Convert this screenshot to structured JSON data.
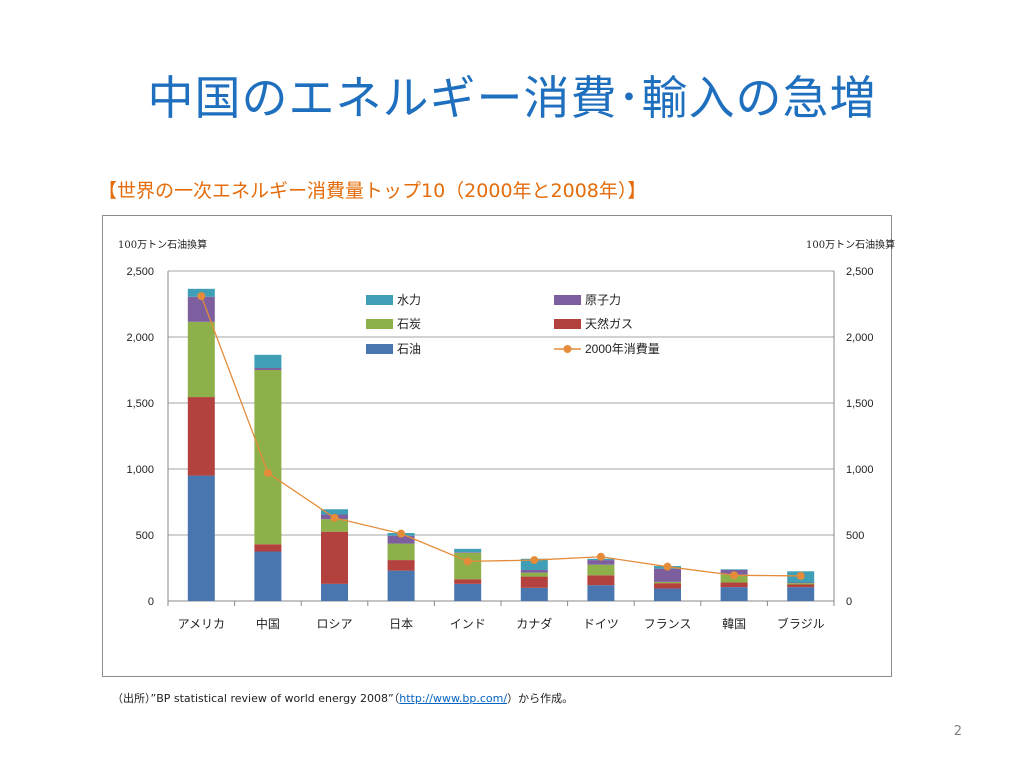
{
  "slide": {
    "title": "中国のエネルギー消費･輸入の急増",
    "subtitle": "【世界の一次エネルギー消費量トップ10（2000年と2008年）】",
    "source_prefix": "（出所）”BP statistical review of world energy 2008”（",
    "source_link": "http://www.bp.com/",
    "source_suffix": "）から作成。",
    "page_number": "2"
  },
  "chart_data": {
    "type": "bar",
    "stacked": true,
    "unit_left": "100万トン石油換算",
    "unit_right": "100万トン石油換算",
    "categories": [
      "アメリカ",
      "中国",
      "ロシア",
      "日本",
      "インド",
      "カナダ",
      "ドイツ",
      "フランス",
      "韓国",
      "ブラジル"
    ],
    "ylim": [
      0,
      2500
    ],
    "yticks": [
      0,
      500,
      1000,
      1500,
      2000,
      2500
    ],
    "ytick_labels": [
      "0",
      "500",
      "1,000",
      "1,500",
      "2,000",
      "2,500"
    ],
    "grid": true,
    "legend_position": "top-center",
    "series": [
      {
        "name": "石油",
        "color": "#4a76b0",
        "values": [
          950,
          375,
          130,
          230,
          130,
          100,
          120,
          95,
          105,
          105
        ]
      },
      {
        "name": "天然ガス",
        "color": "#b3413d",
        "values": [
          595,
          55,
          395,
          80,
          35,
          85,
          75,
          40,
          35,
          20
        ]
      },
      {
        "name": "石炭",
        "color": "#8db04a",
        "values": [
          570,
          1320,
          95,
          125,
          200,
          30,
          80,
          10,
          60,
          10
        ]
      },
      {
        "name": "原子力",
        "color": "#7d5fa0",
        "values": [
          190,
          15,
          35,
          60,
          5,
          20,
          35,
          100,
          35,
          5
        ]
      },
      {
        "name": "水力",
        "color": "#3f9fb6",
        "values": [
          60,
          100,
          40,
          20,
          25,
          85,
          10,
          20,
          5,
          85
        ]
      }
    ],
    "line_series": {
      "name": "2000年消費量",
      "color": "#e58c3a",
      "values": [
        2310,
        970,
        630,
        510,
        300,
        310,
        335,
        260,
        195,
        190
      ]
    },
    "legend": [
      {
        "name": "水力",
        "kind": "box",
        "color": "#3f9fb6"
      },
      {
        "name": "原子力",
        "kind": "box",
        "color": "#7d5fa0"
      },
      {
        "name": "石炭",
        "kind": "box",
        "color": "#8db04a"
      },
      {
        "name": "天然ガス",
        "kind": "box",
        "color": "#b3413d"
      },
      {
        "name": "石油",
        "kind": "box",
        "color": "#4a76b0"
      },
      {
        "name": "2000年消費量",
        "kind": "line",
        "color": "#e58c3a"
      }
    ]
  }
}
